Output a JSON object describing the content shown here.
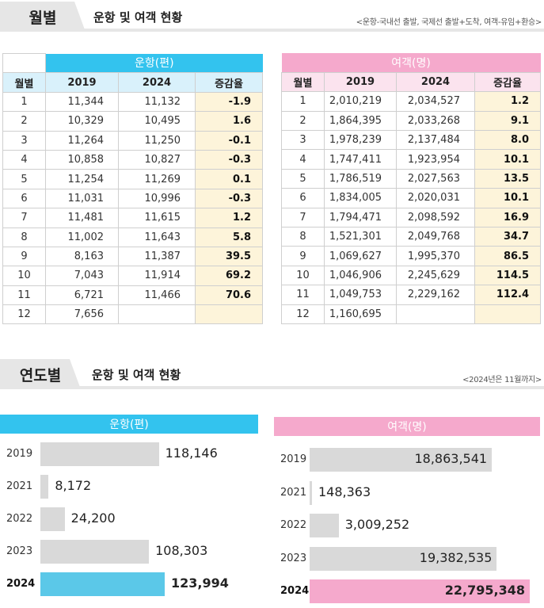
{
  "monthly_section": {
    "tab": "월별",
    "title": "운항 및 여객 현황",
    "note": "<운항-국내선 출발, 국제선 출발+도착, 여객-유임+환승>"
  },
  "yearly_section": {
    "tab": "연도별",
    "title": "운항 및 여객 현황",
    "note": "<2024년은 11월까지>"
  },
  "monthly_flights": {
    "group": "운항(편)",
    "headers": [
      "월별",
      "2019",
      "2024",
      "증감율"
    ],
    "rows": [
      [
        "1",
        "11,344",
        "11,132",
        "-1.9"
      ],
      [
        "2",
        "10,329",
        "10,495",
        "1.6"
      ],
      [
        "3",
        "11,264",
        "11,250",
        "-0.1"
      ],
      [
        "4",
        "10,858",
        "10,827",
        "-0.3"
      ],
      [
        "5",
        "11,254",
        "11,269",
        "0.1"
      ],
      [
        "6",
        "11,031",
        "10,996",
        "-0.3"
      ],
      [
        "7",
        "11,481",
        "11,615",
        "1.2"
      ],
      [
        "8",
        "11,002",
        "11,643",
        "5.8"
      ],
      [
        "9",
        "8,163",
        "11,387",
        "39.5"
      ],
      [
        "10",
        "7,043",
        "11,914",
        "69.2"
      ],
      [
        "11",
        "6,721",
        "11,466",
        "70.6"
      ],
      [
        "12",
        "7,656",
        "",
        ""
      ]
    ]
  },
  "monthly_passengers": {
    "group": "여객(명)",
    "headers": [
      "월별",
      "2019",
      "2024",
      "증감율"
    ],
    "rows": [
      [
        "1",
        "2,010,219",
        "2,034,527",
        "1.2"
      ],
      [
        "2",
        "1,864,395",
        "2,033,268",
        "9.1"
      ],
      [
        "3",
        "1,978,239",
        "2,137,484",
        "8.0"
      ],
      [
        "4",
        "1,747,411",
        "1,923,954",
        "10.1"
      ],
      [
        "5",
        "1,786,519",
        "2,027,563",
        "13.5"
      ],
      [
        "6",
        "1,834,005",
        "2,020,031",
        "10.1"
      ],
      [
        "7",
        "1,794,471",
        "2,098,592",
        "16.9"
      ],
      [
        "8",
        "1,521,301",
        "2,049,768",
        "34.7"
      ],
      [
        "9",
        "1,069,627",
        "1,995,370",
        "86.5"
      ],
      [
        "10",
        "1,046,906",
        "2,245,629",
        "114.5"
      ],
      [
        "11",
        "1,049,753",
        "2,229,162",
        "112.4"
      ],
      [
        "12",
        "1,160,695",
        "",
        ""
      ]
    ]
  },
  "chart_data": [
    {
      "type": "bar",
      "orientation": "horizontal",
      "title": "운항(편)",
      "categories": [
        "2019",
        "2021",
        "2022",
        "2023",
        "2024"
      ],
      "values": [
        118146,
        8172,
        24200,
        108303,
        123994
      ],
      "value_labels": [
        "118,146",
        "8,172",
        "24,200",
        "108,303",
        "123,994"
      ],
      "highlight": "2024",
      "colors": {
        "bar": "#d9d9d9",
        "highlight": "#5bc8e8",
        "header": "#33c3ee"
      }
    },
    {
      "type": "bar",
      "orientation": "horizontal",
      "title": "여객(명)",
      "categories": [
        "2019",
        "2021",
        "2022",
        "2023",
        "2024"
      ],
      "values": [
        18863541,
        148363,
        3009252,
        19382535,
        22795348
      ],
      "value_labels": [
        "18,863,541",
        "148,363",
        "3,009,252",
        "19,382,535",
        "22,795,348"
      ],
      "highlight": "2024",
      "colors": {
        "bar": "#d9d9d9",
        "highlight": "#f5a9cc",
        "header": "#f5a9cc"
      }
    }
  ]
}
